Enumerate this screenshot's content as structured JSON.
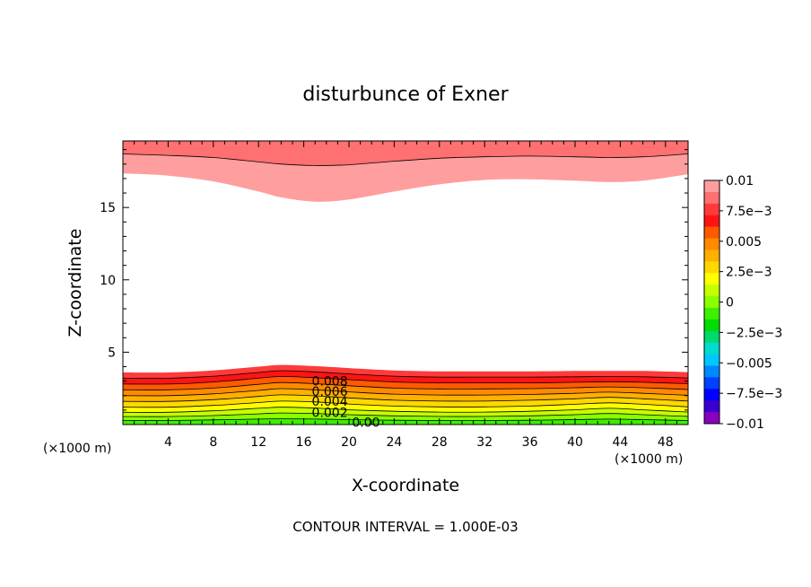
{
  "chart_data": {
    "type": "heatmap",
    "subtype": "filled-contour",
    "title": "disturbunce of Exner",
    "xlabel": "X-coordinate",
    "ylabel": "Z-coordinate",
    "x_unit_label_left": "(×1000 m)",
    "x_unit_label_right": "(×1000 m)",
    "footer": "CONTOUR INTERVAL = 1.000E-03",
    "xlim": [
      0,
      50
    ],
    "ylim": [
      0,
      19.6
    ],
    "x_ticks": [
      4,
      8,
      12,
      16,
      20,
      24,
      28,
      32,
      36,
      40,
      44,
      48
    ],
    "x_tick_labels": [
      "4",
      "8",
      "12",
      "16",
      "20",
      "24",
      "28",
      "32",
      "36",
      "40",
      "44",
      "48"
    ],
    "y_ticks": [
      5,
      10,
      15
    ],
    "y_tick_labels": [
      "5",
      "10",
      "15"
    ],
    "contour_labels": [
      {
        "text": "0.008",
        "x": 18.3,
        "z": 3.0
      },
      {
        "text": "0.006",
        "x": 18.3,
        "z": 2.3
      },
      {
        "text": "0.004",
        "x": 18.3,
        "z": 1.6
      },
      {
        "text": "0.002",
        "x": 18.3,
        "z": 0.85
      },
      {
        "text": "0.00",
        "x": 21.5,
        "z": 0.15
      }
    ],
    "lower_band_boundaries_z": {
      "x": [
        0,
        4,
        8,
        12,
        14,
        17,
        20,
        24,
        28,
        32,
        36,
        40,
        43,
        46,
        50
      ],
      "levels": [
        0.0,
        0.001,
        0.002,
        0.003,
        0.004,
        0.005,
        0.006,
        0.007,
        0.008,
        0.009,
        0.01
      ],
      "z": [
        [
          0.0,
          0.0,
          0.0,
          0.0,
          0.0,
          0.0,
          0.0,
          0.0,
          0.0,
          0.0,
          0.0,
          0.0,
          0.0,
          0.0,
          0.0
        ],
        [
          0.28,
          0.28,
          0.32,
          0.38,
          0.4,
          0.38,
          0.34,
          0.3,
          0.28,
          0.28,
          0.3,
          0.34,
          0.38,
          0.34,
          0.28
        ],
        [
          0.55,
          0.55,
          0.62,
          0.74,
          0.8,
          0.76,
          0.68,
          0.6,
          0.56,
          0.56,
          0.6,
          0.68,
          0.76,
          0.68,
          0.56
        ],
        [
          0.85,
          0.85,
          0.95,
          1.12,
          1.2,
          1.14,
          1.02,
          0.92,
          0.86,
          0.86,
          0.92,
          1.02,
          1.12,
          1.02,
          0.86
        ],
        [
          1.2,
          1.2,
          1.32,
          1.52,
          1.62,
          1.56,
          1.42,
          1.28,
          1.22,
          1.22,
          1.28,
          1.4,
          1.5,
          1.4,
          1.22
        ],
        [
          1.6,
          1.6,
          1.72,
          1.94,
          2.05,
          1.98,
          1.84,
          1.68,
          1.62,
          1.62,
          1.68,
          1.78,
          1.88,
          1.78,
          1.62
        ],
        [
          2.0,
          2.0,
          2.12,
          2.36,
          2.48,
          2.4,
          2.26,
          2.1,
          2.04,
          2.04,
          2.08,
          2.16,
          2.24,
          2.16,
          2.02
        ],
        [
          2.4,
          2.4,
          2.52,
          2.78,
          2.9,
          2.82,
          2.68,
          2.52,
          2.46,
          2.46,
          2.48,
          2.54,
          2.6,
          2.54,
          2.42
        ],
        [
          2.8,
          2.8,
          2.94,
          3.2,
          3.32,
          3.24,
          3.1,
          2.94,
          2.88,
          2.88,
          2.88,
          2.92,
          2.96,
          2.92,
          2.82
        ],
        [
          3.2,
          3.2,
          3.34,
          3.6,
          3.72,
          3.64,
          3.5,
          3.34,
          3.28,
          3.28,
          3.28,
          3.3,
          3.32,
          3.3,
          3.22
        ],
        [
          3.6,
          3.6,
          3.74,
          4.0,
          4.12,
          4.04,
          3.9,
          3.74,
          3.68,
          3.68,
          3.68,
          3.7,
          3.7,
          3.7,
          3.62
        ]
      ]
    },
    "upper_band_boundaries_z": {
      "x": [
        0,
        4,
        8,
        12,
        14,
        17,
        20,
        24,
        28,
        32,
        36,
        40,
        43,
        46,
        50
      ],
      "levels": [
        0.01,
        0.009,
        0.008
      ],
      "z": [
        [
          17.35,
          17.2,
          16.8,
          16.1,
          15.7,
          15.4,
          15.55,
          16.1,
          16.6,
          16.9,
          16.95,
          16.85,
          16.75,
          16.85,
          17.3
        ],
        [
          18.7,
          18.6,
          18.45,
          18.15,
          18.0,
          17.9,
          17.95,
          18.2,
          18.4,
          18.5,
          18.55,
          18.5,
          18.45,
          18.5,
          18.7
        ],
        [
          19.6,
          19.6,
          19.6,
          19.6,
          19.6,
          19.6,
          19.6,
          19.6,
          19.6,
          19.6,
          19.6,
          19.6,
          19.6,
          19.6,
          19.6
        ]
      ],
      "contour_line_level": 0.009
    },
    "colorbar": {
      "tick_labels": [
        "0.01",
        "7.5e−3",
        "0.005",
        "2.5e−3",
        "0",
        "−2.5e−3",
        "−0.005",
        "−7.5e−3",
        "−0.01"
      ],
      "tick_values": [
        0.01,
        0.0075,
        0.005,
        0.0025,
        0,
        -0.0025,
        -0.005,
        -0.0075,
        -0.01
      ],
      "colors_top_to_bottom": [
        "#ff9e9e",
        "#ff7070",
        "#ff3a3a",
        "#ff1414",
        "#ff5a00",
        "#ff8a00",
        "#ffb000",
        "#ffd800",
        "#ffff00",
        "#c6ff00",
        "#8aff00",
        "#3cf000",
        "#00dd00",
        "#00d96e",
        "#00ddcc",
        "#00c8ff",
        "#0088ff",
        "#0040ff",
        "#0000ff",
        "#3a00d0",
        "#8800c0"
      ]
    },
    "band_colors_bottom_to_top": [
      "#3cf000",
      "#8aff00",
      "#c6ff00",
      "#ffff00",
      "#ffd800",
      "#ffb000",
      "#ff8a00",
      "#ff5a00",
      "#ff1414",
      "#ff3a3a"
    ],
    "upper_band_colors_bottom_to_top": [
      "#ff9e9e",
      "#ff7070"
    ]
  }
}
